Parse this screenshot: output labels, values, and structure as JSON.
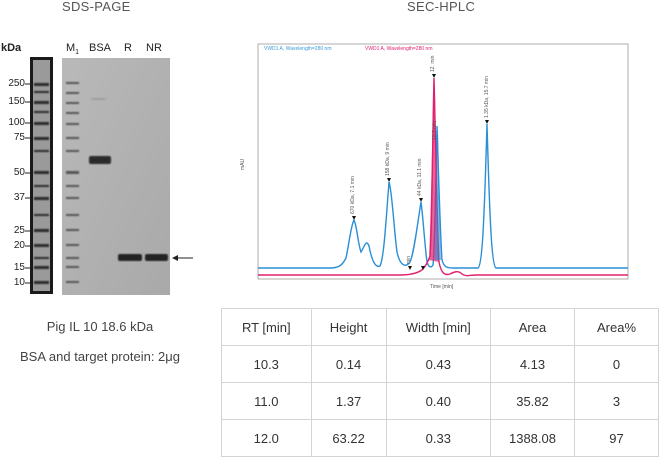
{
  "sds_page": {
    "title": "SDS-PAGE",
    "unit_label": "kDa",
    "lanes": [
      "M",
      "BSA",
      "R",
      "NR"
    ],
    "lane_m_subscript": "1",
    "marker_kda": [
      "250",
      "150",
      "100",
      "75",
      "50",
      "37",
      "25",
      "20",
      "15",
      "10"
    ],
    "caption_line1": "Pig IL 10 18.6 kDa",
    "caption_line2": "BSA and target protein: 2μg"
  },
  "sec_hplc": {
    "title": "SEC-HPLC",
    "legend": [
      {
        "label": "VWD1 A, Wavelength=280 nm",
        "color": "#3a9ad9"
      },
      {
        "label": "VWD1 A, Wavelength=280 nm",
        "color": "#e0206e"
      }
    ],
    "y_axis_label": "mAU",
    "x_axis_label": "Time [min]",
    "peak_labels": [
      "670 kDa, 7.1 min",
      "158 kDa, 9 min",
      "44 kDa, 11.1 min",
      "1.35 kDa, 15.7 min",
      "12. min",
      "min",
      "10.3 min"
    ]
  },
  "results_table": {
    "headers": [
      "RT [min]",
      "Height",
      "Width [min]",
      "Area",
      "Area%"
    ],
    "rows": [
      [
        "10.3",
        "0.14",
        "0.43",
        "4.13",
        "0"
      ],
      [
        "11.0",
        "1.37",
        "0.40",
        "35.82",
        "3"
      ],
      [
        "12.0",
        "63.22",
        "0.33",
        "1388.08",
        "97"
      ]
    ]
  }
}
